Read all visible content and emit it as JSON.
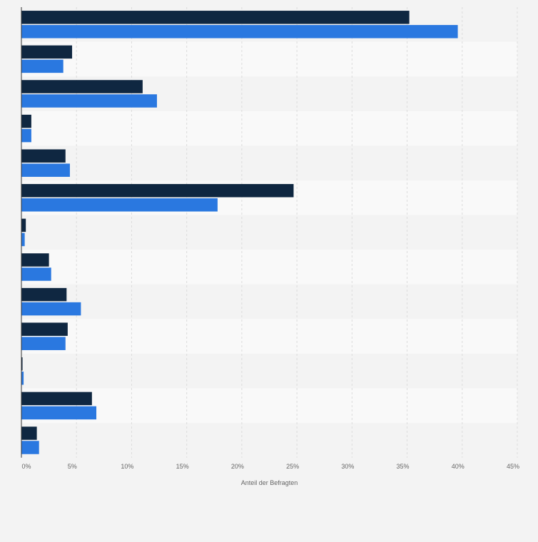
{
  "chart_data": {
    "type": "bar",
    "orientation": "horizontal",
    "categories": [
      "",
      "",
      "",
      "",
      "",
      "",
      "",
      "",
      "",
      "",
      "",
      "",
      ""
    ],
    "series": [
      {
        "color": "#0f2741",
        "values": [
          35.2,
          4.6,
          11.0,
          0.9,
          4.0,
          24.7,
          0.4,
          2.5,
          4.1,
          4.2,
          0.1,
          6.4,
          1.4
        ]
      },
      {
        "color": "#2a78e0",
        "values": [
          39.6,
          3.8,
          12.3,
          0.9,
          4.4,
          17.8,
          0.3,
          2.7,
          5.4,
          4.0,
          0.2,
          6.8,
          1.6
        ]
      }
    ],
    "xlim": [
      0,
      45
    ],
    "xticks": [
      0,
      5,
      10,
      15,
      20,
      25,
      30,
      35,
      40,
      45
    ],
    "xtick_labels": [
      "0%",
      "5%",
      "10%",
      "15%",
      "20%",
      "25%",
      "30%",
      "35%",
      "40%",
      "45%"
    ],
    "xlabel": "Anteil der Befragten",
    "grid": "vertical-dashed",
    "legend": "none"
  }
}
